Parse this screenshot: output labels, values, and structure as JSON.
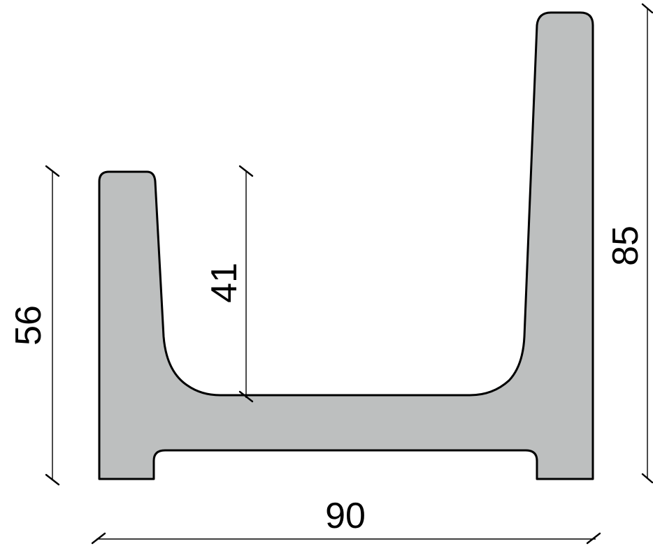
{
  "colors": {
    "profile_fill": "#bdbfbf",
    "profile_stroke": "#000000",
    "background": "#ffffff"
  },
  "dimensions": {
    "width_label": "90",
    "left_height_label": "56",
    "inner_depth_label": "41",
    "right_height_label": "85"
  }
}
